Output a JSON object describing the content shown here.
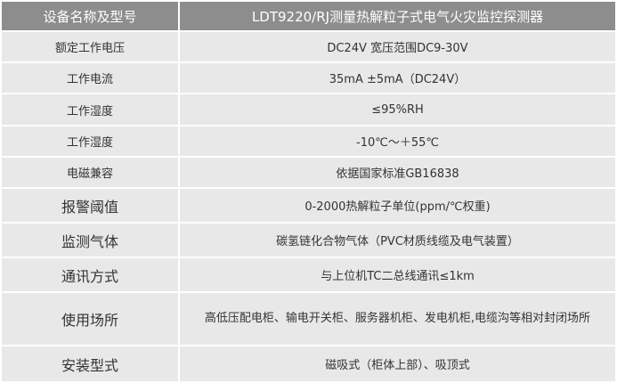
{
  "header": {
    "label": "设备名称及型号",
    "value": "LDT9220/RJ测量热解粒子式电气火灾监控探测器"
  },
  "rows": [
    {
      "label": "额定工作电压",
      "value": "DC24V 宽压范围DC9-30V"
    },
    {
      "label": "工作电流",
      "value": "35mA ±5mA（DC24V）"
    },
    {
      "label": "工作湿度",
      "value": "≤95%RH"
    },
    {
      "label": "工作湿度",
      "value": "-10℃～＋55℃"
    },
    {
      "label": "电磁兼容",
      "value": "依据国家标准GB16838"
    },
    {
      "label": "报警阈值",
      "value": "0-2000热解粒子单位(ppm/℃权重)"
    },
    {
      "label": "监测气体",
      "value": "碳氢链化合物气体（PVC材质线缆及电气装置）"
    },
    {
      "label": "通讯方式",
      "value": "与上位机TC二总线通讯≤1km"
    },
    {
      "label": "使用场所",
      "value": "高低压配电柜、输电开关柜、服务器机柜、发电机柜,电缆沟等相对封闭场所"
    },
    {
      "label": "安装型式",
      "value": "磁吸式（柜体上部）、吸顶式"
    }
  ]
}
